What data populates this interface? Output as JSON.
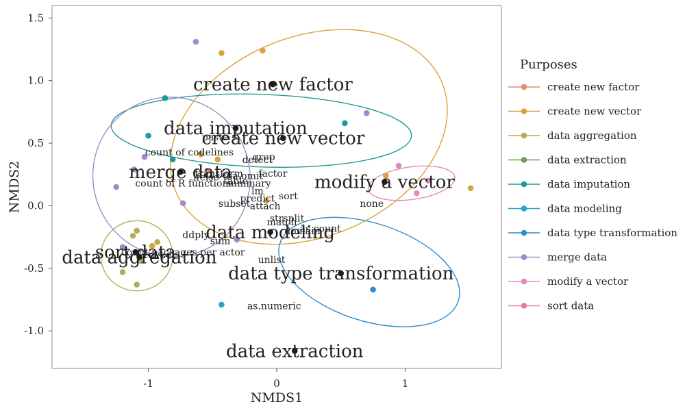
{
  "chart_data": {
    "type": "scatter",
    "xlabel": "NMDS1",
    "ylabel": "NMDS2",
    "xlim": [
      -1.75,
      1.75
    ],
    "ylim": [
      -1.3,
      1.6
    ],
    "x_ticks": [
      {
        "v": -1,
        "t": "-1"
      },
      {
        "v": 0,
        "t": "0"
      },
      {
        "v": 1,
        "t": "1"
      }
    ],
    "y_ticks": [
      {
        "v": 1.5,
        "t": "1.5"
      },
      {
        "v": 1.0,
        "t": "1.0"
      },
      {
        "v": 0.5,
        "t": "0.5"
      },
      {
        "v": 0.0,
        "t": "0.0"
      },
      {
        "v": -0.5,
        "t": "-0.5"
      },
      {
        "v": -1.0,
        "t": "-1.0"
      }
    ],
    "legend_title": "Purposes",
    "legend_position": "right",
    "series": [
      {
        "name": "create new factor",
        "color": "#e8896d"
      },
      {
        "name": "create new vector",
        "color": "#d9a23a"
      },
      {
        "name": "data aggregation",
        "color": "#b5ad55"
      },
      {
        "name": "data extraction",
        "color": "#6c9e57"
      },
      {
        "name": "data imputation",
        "color": "#1f9a97"
      },
      {
        "name": "data modeling",
        "color": "#2ba5c4"
      },
      {
        "name": "data type transformation",
        "color": "#2e8ccf"
      },
      {
        "name": "merge data",
        "color": "#9e8ac9"
      },
      {
        "name": "modify a vector",
        "color": "#e08bbd"
      },
      {
        "name": "sort data",
        "color": "#ea7c94"
      }
    ],
    "ellipses": [
      {
        "series": "create new vector",
        "cx": 0.25,
        "cy": 0.55,
        "rx": 1.12,
        "ry": 0.8,
        "angle": -22
      },
      {
        "series": "data imputation",
        "cx": -0.12,
        "cy": 0.6,
        "rx": 1.17,
        "ry": 0.29,
        "angle": 2
      },
      {
        "series": "merge data",
        "cx": -0.82,
        "cy": 0.23,
        "rx": 0.61,
        "ry": 0.64,
        "angle": -25
      },
      {
        "series": "data aggregation",
        "cx": -1.09,
        "cy": -0.4,
        "rx": 0.28,
        "ry": 0.28,
        "angle": 0
      },
      {
        "series": "data type transformation",
        "cx": 0.72,
        "cy": -0.53,
        "rx": 0.73,
        "ry": 0.39,
        "angle": 18
      },
      {
        "series": "modify a vector",
        "cx": 1.05,
        "cy": 0.18,
        "rx": 0.34,
        "ry": 0.13,
        "angle": -8
      }
    ],
    "points": [
      {
        "series": "create new vector",
        "x": -0.43,
        "y": 1.22
      },
      {
        "series": "create new vector",
        "x": -0.11,
        "y": 1.24
      },
      {
        "series": "create new vector",
        "x": -0.46,
        "y": 0.37
      },
      {
        "series": "create new vector",
        "x": -0.59,
        "y": 0.41
      },
      {
        "series": "create new vector",
        "x": -0.08,
        "y": 0.04
      },
      {
        "series": "create new vector",
        "x": -0.97,
        "y": -0.32
      },
      {
        "series": "create new vector",
        "x": 0.85,
        "y": 0.24
      },
      {
        "series": "create new vector",
        "x": 1.51,
        "y": 0.14
      },
      {
        "series": "merge data",
        "x": -0.63,
        "y": 1.31
      },
      {
        "series": "merge data",
        "x": 0.7,
        "y": 0.74
      },
      {
        "series": "merge data",
        "x": -1.03,
        "y": 0.39
      },
      {
        "series": "merge data",
        "x": -1.11,
        "y": 0.29
      },
      {
        "series": "merge data",
        "x": -1.25,
        "y": 0.15
      },
      {
        "series": "merge data",
        "x": -0.73,
        "y": 0.02
      },
      {
        "series": "merge data",
        "x": -0.31,
        "y": -0.27
      },
      {
        "series": "merge data",
        "x": -1.2,
        "y": -0.33
      },
      {
        "series": "data imputation",
        "x": -0.87,
        "y": 0.86
      },
      {
        "series": "data imputation",
        "x": 0.53,
        "y": 0.66
      },
      {
        "series": "data imputation",
        "x": -1.0,
        "y": 0.56
      },
      {
        "series": "data imputation",
        "x": -0.81,
        "y": 0.37
      },
      {
        "series": "data aggregation",
        "x": -1.09,
        "y": -0.2
      },
      {
        "series": "data aggregation",
        "x": -1.12,
        "y": -0.24
      },
      {
        "series": "data aggregation",
        "x": -0.93,
        "y": -0.29
      },
      {
        "series": "data aggregation",
        "x": -1.06,
        "y": -0.44
      },
      {
        "series": "data aggregation",
        "x": -1.2,
        "y": -0.53
      },
      {
        "series": "data aggregation",
        "x": -1.09,
        "y": -0.63
      },
      {
        "series": "modify a vector",
        "x": 0.95,
        "y": 0.32
      },
      {
        "series": "modify a vector",
        "x": 1.09,
        "y": 0.1
      },
      {
        "series": "modify a vector",
        "x": 1.18,
        "y": 0.2
      },
      {
        "series": "sort data",
        "x": -0.54,
        "y": 0.28
      },
      {
        "series": "data modeling",
        "x": -0.43,
        "y": -0.79
      },
      {
        "series": "data type transformation",
        "x": 0.75,
        "y": -0.67
      }
    ],
    "centroids": [
      {
        "label": "create new factor",
        "x": -0.03,
        "y": 0.97,
        "size": "big"
      },
      {
        "label": "data imputation",
        "x": -0.32,
        "y": 0.62,
        "size": "big"
      },
      {
        "label": "create new vector",
        "x": 0.05,
        "y": 0.54,
        "size": "big"
      },
      {
        "label": "merge data",
        "x": -0.75,
        "y": 0.27,
        "size": "big"
      },
      {
        "label": "modify a vector",
        "x": 0.84,
        "y": 0.19,
        "size": "big"
      },
      {
        "label": "data modeling",
        "x": -0.05,
        "y": -0.21,
        "size": "big"
      },
      {
        "label": "sort data",
        "x": -1.1,
        "y": -0.37,
        "size": "big"
      },
      {
        "label": "data aggregation",
        "x": -1.07,
        "y": -0.41,
        "size": "big"
      },
      {
        "label": "data type transformation",
        "x": 0.5,
        "y": -0.54,
        "size": "big"
      },
      {
        "label": "data extraction",
        "x": 0.14,
        "y": -1.16,
        "size": "big"
      }
    ],
    "annotations": [
      {
        "text": "count of codelines",
        "x": -0.68,
        "y": 0.43
      },
      {
        "text": "count of R functions",
        "x": -0.72,
        "y": 0.18
      },
      {
        "text": "detect",
        "x": -0.15,
        "y": 0.37
      },
      {
        "text": "paste",
        "x": -0.48,
        "y": 0.55
      },
      {
        "text": "grep",
        "x": -0.1,
        "y": 0.39
      },
      {
        "text": "transform",
        "x": -0.45,
        "y": 0.26
      },
      {
        "text": "ifelse",
        "x": -0.55,
        "y": 0.23
      },
      {
        "text": "na.omit",
        "x": -0.25,
        "y": 0.24
      },
      {
        "text": "factor",
        "x": -0.03,
        "y": 0.26
      },
      {
        "text": "table",
        "x": -0.32,
        "y": 0.2
      },
      {
        "text": "lm",
        "x": -0.15,
        "y": 0.12
      },
      {
        "text": "summary",
        "x": -0.22,
        "y": 0.18
      },
      {
        "text": "predict",
        "x": -0.15,
        "y": 0.06
      },
      {
        "text": "sort",
        "x": 0.09,
        "y": 0.08
      },
      {
        "text": "subset",
        "x": -0.33,
        "y": 0.02
      },
      {
        "text": "attach",
        "x": -0.09,
        "y": 0.0
      },
      {
        "text": "strsplit",
        "x": 0.08,
        "y": -0.1
      },
      {
        "text": "match",
        "x": 0.04,
        "y": -0.13
      },
      {
        "text": "as.count",
        "x": 0.34,
        "y": -0.18
      },
      {
        "text": "domain",
        "x": 0.2,
        "y": -0.2
      },
      {
        "text": "ddply",
        "x": -0.63,
        "y": -0.23
      },
      {
        "text": "sum",
        "x": -0.44,
        "y": -0.28
      },
      {
        "text": "count packages per actor",
        "x": -0.73,
        "y": -0.37
      },
      {
        "text": "unlist",
        "x": -0.04,
        "y": -0.43
      },
      {
        "text": "none",
        "x": 0.74,
        "y": 0.02
      },
      {
        "text": "as.numeric",
        "x": -0.02,
        "y": -0.8
      }
    ]
  }
}
